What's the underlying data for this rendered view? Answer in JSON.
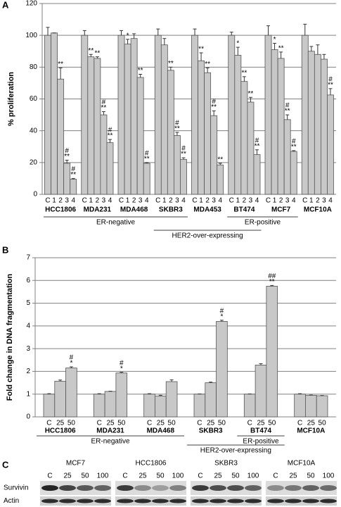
{
  "chart_data": [
    {
      "type": "bar",
      "panel": "A",
      "y_label": "% proliferation",
      "categories": [
        "C",
        "1",
        "2",
        "3",
        "4",
        "C",
        "1",
        "2",
        "3",
        "4",
        "C",
        "1",
        "2",
        "3",
        "4",
        "C",
        "1",
        "2",
        "3",
        "4",
        "C",
        "1",
        "2",
        "3",
        "4",
        "C",
        "1",
        "2",
        "3",
        "4",
        "C",
        "1",
        "2",
        "3",
        "4",
        "C",
        "1",
        "2",
        "3",
        "4"
      ],
      "groups": [
        "HCC1806",
        "MDA231",
        "MDA468",
        "SKBR3",
        "MDA453",
        "BT474",
        "MCF7",
        "MCF10A"
      ],
      "brackets": [
        "ER-negative",
        "HER2-over-expressing",
        "ER-positive"
      ],
      "values": [
        100,
        101.5,
        72.5,
        19.5,
        9.5,
        100,
        86.5,
        85.5,
        50,
        32.5,
        100,
        94.5,
        98,
        73.5,
        19.5,
        100,
        94,
        78,
        37,
        22,
        100,
        84,
        76.5,
        49.5,
        18.5,
        100,
        87.5,
        71,
        58,
        25,
        100,
        91,
        85.5,
        47,
        27,
        100,
        90,
        88,
        85,
        62.5
      ],
      "errors": [
        5,
        0,
        7,
        2,
        0.5,
        3,
        1.5,
        1,
        2,
        2,
        3,
        3,
        3,
        2,
        0.5,
        4,
        4,
        2,
        2,
        1,
        4,
        5,
        3,
        3,
        1,
        2,
        5,
        3,
        3,
        3,
        6,
        4,
        4,
        3,
        0.5,
        7,
        3,
        6,
        3,
        4
      ],
      "annotations": [
        null,
        null,
        [
          "**"
        ],
        [
          "#",
          "**"
        ],
        [
          "#",
          "**"
        ],
        null,
        [
          "**"
        ],
        [
          "**"
        ],
        [
          "#",
          "**"
        ],
        [
          "#",
          "**"
        ],
        null,
        [
          "*"
        ],
        null,
        [
          "**"
        ],
        [
          "#",
          "**"
        ],
        null,
        null,
        [
          "**"
        ],
        [
          "#",
          "**"
        ],
        [
          "#",
          "**"
        ],
        null,
        [
          "**"
        ],
        [
          "**"
        ],
        [
          "#",
          "**"
        ],
        [
          "**"
        ],
        null,
        [
          "*"
        ],
        [
          "**"
        ],
        [
          "**"
        ],
        [
          "#",
          "**"
        ],
        null,
        [
          "*"
        ],
        [
          "**"
        ],
        [
          "#",
          "**"
        ],
        [
          "#",
          "**"
        ],
        null,
        null,
        null,
        null,
        [
          "#",
          "**"
        ]
      ],
      "color": "#c8c8c8",
      "ylim": [
        0,
        120
      ],
      "yticks": [
        0,
        20,
        40,
        60,
        80,
        100,
        120
      ],
      "grid": true
    },
    {
      "type": "bar",
      "panel": "B",
      "y_label": "Fold change in DNA fragmentation",
      "categories": [
        "C",
        "25",
        "50",
        "C",
        "25",
        "50",
        "C",
        "25",
        "50",
        "C",
        "25",
        "50",
        "C",
        "25",
        "50",
        "C",
        "25",
        "50"
      ],
      "groups": [
        "HCC1806",
        "MDA231",
        "MDA468",
        "SKBR3",
        "BT474",
        "MCF10A"
      ],
      "brackets": [
        "ER-negative",
        "HER2-over-expressing",
        "ER-positive"
      ],
      "values": [
        1.0,
        1.57,
        2.15,
        1.0,
        1.12,
        1.93,
        1.0,
        0.92,
        1.55,
        1.0,
        1.5,
        4.2,
        1.0,
        2.28,
        5.75,
        1.0,
        0.95,
        0.93
      ],
      "errors": [
        0.02,
        0.05,
        0.05,
        0.02,
        0.01,
        0.03,
        0.02,
        0.03,
        0.08,
        0.01,
        0.03,
        0.05,
        0.01,
        0.06,
        0.03,
        0.02,
        0.01,
        0.01
      ],
      "annotations": [
        null,
        null,
        [
          "#",
          "*"
        ],
        null,
        null,
        [
          "#",
          "*"
        ],
        null,
        null,
        null,
        null,
        null,
        [
          "#",
          "*"
        ],
        null,
        null,
        [
          "##",
          "**"
        ],
        null,
        null,
        null
      ],
      "color": "#c8c8c8",
      "ylim": [
        0,
        7
      ],
      "yticks": [
        0,
        1,
        2,
        3,
        4,
        5,
        6,
        7
      ],
      "grid": true
    }
  ],
  "blot": {
    "panel": "C",
    "cell_lines": [
      "MCF7",
      "HCC1806",
      "SKBR3",
      "MCF10A"
    ],
    "lanes": [
      "C",
      "25",
      "50",
      "100"
    ],
    "rows": [
      "Survivin",
      "Actin"
    ]
  }
}
